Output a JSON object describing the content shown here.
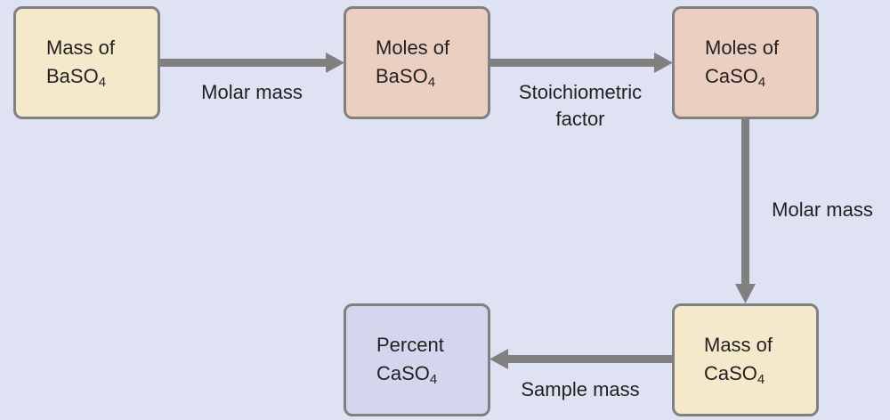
{
  "colors": {
    "background": "#dee2f2",
    "mass_box": "#f4eacb",
    "moles_box": "#ebd0c2",
    "percent_box": "#d4d6ed",
    "border": "#808080",
    "arrow": "#808080",
    "text": "#231f20"
  },
  "nodes": {
    "mass_baso4": {
      "line1": "Mass of",
      "formula_main": "BaSO",
      "formula_sub": "4"
    },
    "moles_baso4": {
      "line1": "Moles of",
      "formula_main": "BaSO",
      "formula_sub": "4"
    },
    "moles_caso4": {
      "line1": "Moles of",
      "formula_main": "CaSO",
      "formula_sub": "4"
    },
    "mass_caso4": {
      "line1": "Mass of",
      "formula_main": "CaSO",
      "formula_sub": "4"
    },
    "percent_caso4": {
      "line1": "Percent",
      "formula_main": "CaSO",
      "formula_sub": "4"
    }
  },
  "edges": {
    "mass_to_moles_baso4": {
      "line1": "Molar mass"
    },
    "moles_baso4_to_moles_caso4": {
      "line1": "Stoichiometric",
      "line2": "factor"
    },
    "moles_caso4_to_mass_caso4": {
      "line1": "Molar mass"
    },
    "mass_caso4_to_percent": {
      "line1": "Sample mass"
    }
  }
}
